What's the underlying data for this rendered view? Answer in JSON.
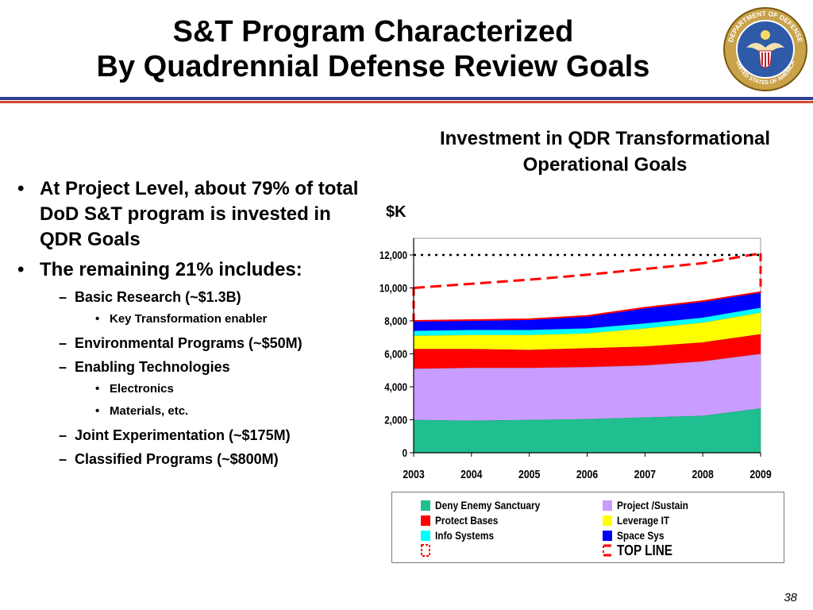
{
  "slide": {
    "title_line1": "S&T Program Characterized",
    "title_line2": "By Quadrennial Defense Review Goals",
    "seal_text_top": "DEPARTMENT OF DEFENSE",
    "seal_text_bottom": "UNITED STATES OF AMERICA",
    "page_number": "38"
  },
  "bullets": {
    "b1_text": "At Project Level, about 79% of total DoD S&T program is invested in QDR Goals",
    "b2_text": "The remaining 21% includes:",
    "basic_research": "Basic Research (~$1.3B)",
    "key_transformation": "Key Transformation enabler",
    "environmental": "Environmental Programs (~$50M)",
    "enabling": "Enabling Technologies",
    "electronics": "Electronics",
    "materials": "Materials, etc.",
    "joint_exp": "Joint Experimentation (~$175M)",
    "classified": "Classified Programs (~$800M)"
  },
  "chart_data": {
    "type": "area",
    "title": "Investment in QDR Transformational Operational Goals",
    "ylabel": "$K",
    "xlabel": "",
    "x": [
      "2003",
      "2004",
      "2005",
      "2006",
      "2007",
      "2008",
      "2009"
    ],
    "ylim": [
      0,
      12000
    ],
    "yticks": [
      "0",
      "2,000",
      "4,000",
      "6,000",
      "8,000",
      "10,000",
      "12,000"
    ],
    "stacked": true,
    "series": [
      {
        "name": "Deny Enemy Sanctuary",
        "color": "#1fbf8f",
        "values": [
          2000,
          1950,
          2000,
          2050,
          2150,
          2250,
          2700
        ]
      },
      {
        "name": "Project /Sustain",
        "color": "#c99cff",
        "values": [
          3100,
          3200,
          3150,
          3150,
          3150,
          3300,
          3300
        ]
      },
      {
        "name": "Protect Bases",
        "color": "#ff0000",
        "values": [
          1200,
          1150,
          1100,
          1150,
          1150,
          1150,
          1200
        ]
      },
      {
        "name": "Leverage IT",
        "color": "#ffff00",
        "values": [
          800,
          850,
          900,
          900,
          1100,
          1200,
          1300
        ]
      },
      {
        "name": "Info Systems",
        "color": "#00ffff",
        "values": [
          300,
          300,
          300,
          300,
          300,
          300,
          300
        ]
      },
      {
        "name": "Space Sys",
        "color": "#0000ff",
        "values": [
          600,
          600,
          650,
          750,
          950,
          1000,
          950
        ]
      }
    ],
    "lines": [
      {
        "name": "TOP LINE",
        "color": "#ff0000",
        "style": "dashed",
        "values": [
          10000,
          10250,
          10500,
          10800,
          11150,
          11500,
          12100
        ]
      },
      {
        "name": "",
        "color": "#000000",
        "style": "dotted",
        "values": [
          12000,
          12000,
          12000,
          12000,
          12000,
          12000,
          12000
        ]
      }
    ],
    "grid": false,
    "legend_position": "bottom"
  }
}
